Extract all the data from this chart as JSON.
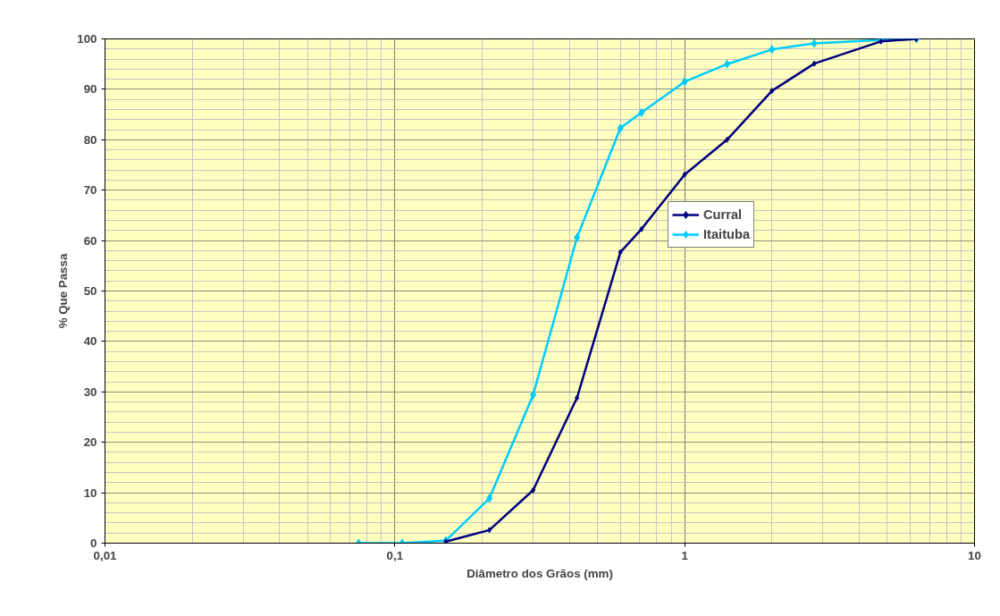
{
  "chart_data": {
    "type": "line",
    "xlabel": "Diâmetro dos Grãos (mm)",
    "ylabel": "% Que Passa",
    "x": [
      0.075,
      0.106,
      0.15,
      0.212,
      0.3,
      0.425,
      0.6,
      0.71,
      1.0,
      1.4,
      2.0,
      2.8,
      4.75,
      6.3
    ],
    "series": [
      {
        "name": "Curral",
        "color": "#000080",
        "values": [
          null,
          null,
          0.3,
          2.6,
          10.5,
          28.8,
          57.7,
          62.3,
          73.1,
          80,
          89.7,
          95.1,
          99.5,
          100
        ]
      },
      {
        "name": "Itaituba",
        "color": "#00ccff",
        "values": [
          0,
          0,
          0.5,
          8.9,
          29.4,
          60.6,
          82.3,
          85.4,
          91.5,
          95.0,
          97.9,
          99.1,
          99.8,
          100
        ]
      }
    ],
    "log": "x",
    "xlim": [
      0.01,
      10
    ],
    "xticks": [
      {
        "value": 0.01,
        "label": "0,01"
      },
      {
        "value": 0.1,
        "label": "0,1"
      },
      {
        "value": 1,
        "label": "1"
      },
      {
        "value": 10,
        "label": "10"
      }
    ],
    "ylim": [
      0,
      100
    ],
    "yticks": [
      0,
      10,
      20,
      30,
      40,
      50,
      60,
      70,
      80,
      90,
      100
    ],
    "grid": true,
    "legend": "right",
    "marker": "diamond",
    "line_style": "solid"
  }
}
